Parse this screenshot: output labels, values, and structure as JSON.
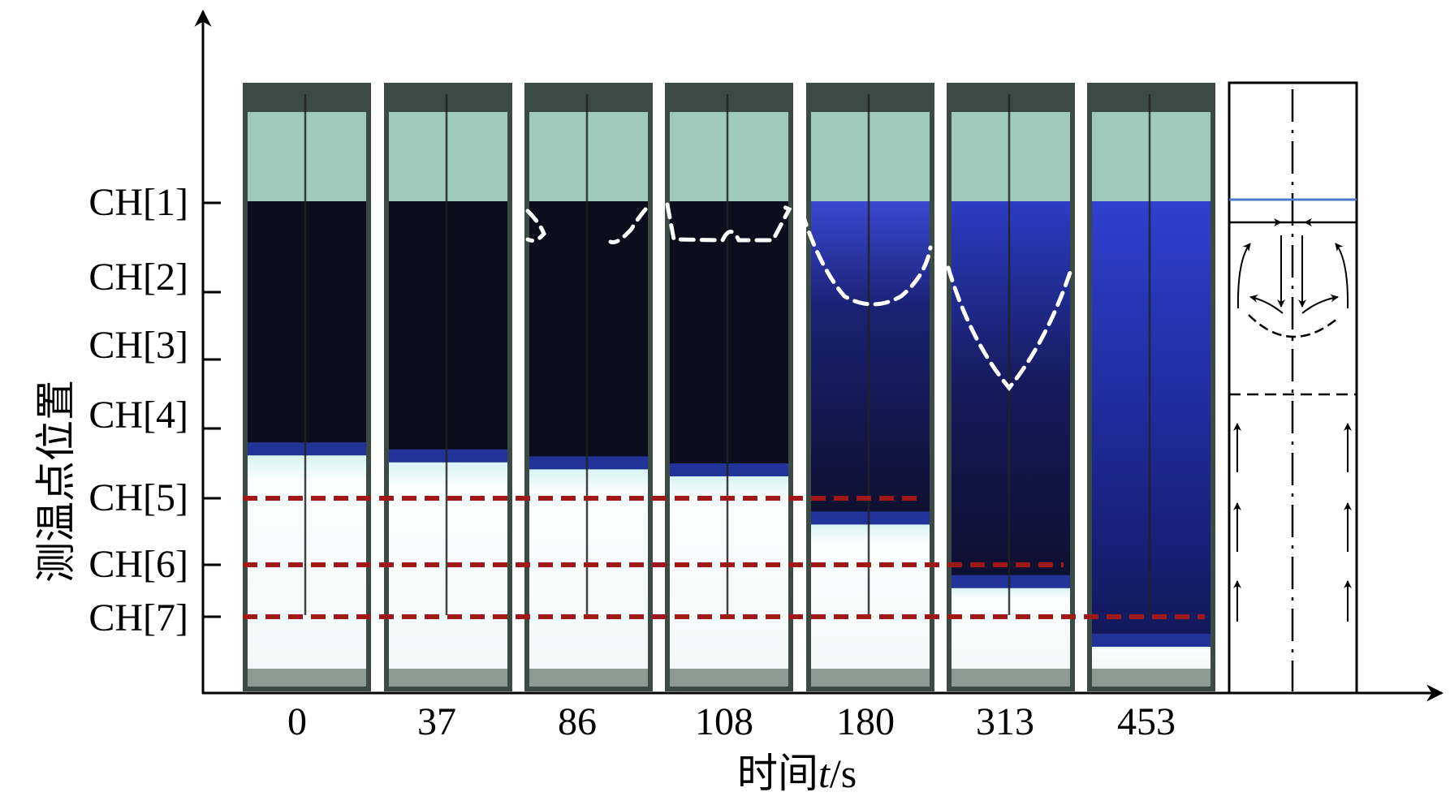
{
  "y_axis": {
    "title": "测温点位置",
    "channels": [
      "CH[1]",
      "CH[2]",
      "CH[3]",
      "CH[4]",
      "CH[5]",
      "CH[6]",
      "CH[7]"
    ]
  },
  "x_axis": {
    "title_prefix": "时间",
    "title_var": "t",
    "title_unit": "/s",
    "times": [
      "0",
      "37",
      "86",
      "108",
      "180",
      "313",
      "453"
    ]
  },
  "frames": [
    {
      "time": 0,
      "front_channel": 4.2,
      "ice_bottom_channel": 4.2,
      "contour": "none"
    },
    {
      "time": 37,
      "front_channel": 4.3,
      "ice_bottom_channel": 4.3,
      "contour": "none"
    },
    {
      "time": 86,
      "front_channel": 4.4,
      "ice_bottom_channel": 4.4,
      "contour": "top-corners"
    },
    {
      "time": 108,
      "front_channel": 4.5,
      "ice_bottom_channel": 4.5,
      "contour": "top-band"
    },
    {
      "time": 180,
      "front_channel": 5.2,
      "ice_bottom_channel": 5.2,
      "contour": "shallow-bowl"
    },
    {
      "time": 313,
      "front_channel": 6.2,
      "ice_bottom_channel": 6.2,
      "contour": "deep-v"
    },
    {
      "time": 453,
      "front_channel": 7.3,
      "ice_bottom_channel": 7.3,
      "contour": "none"
    }
  ],
  "reference_lines": [
    "CH[5]",
    "CH[6]",
    "CH[7]"
  ],
  "colors": {
    "frame_top": "#9fc9bb",
    "dark_liquid": "#0b0d1c",
    "blue_liquid": "#2834b8",
    "ice": "#f6fbfb",
    "reference_line": "#a01818",
    "contour": "#ffffff",
    "schematic_blue_line": "#4f79c9"
  }
}
